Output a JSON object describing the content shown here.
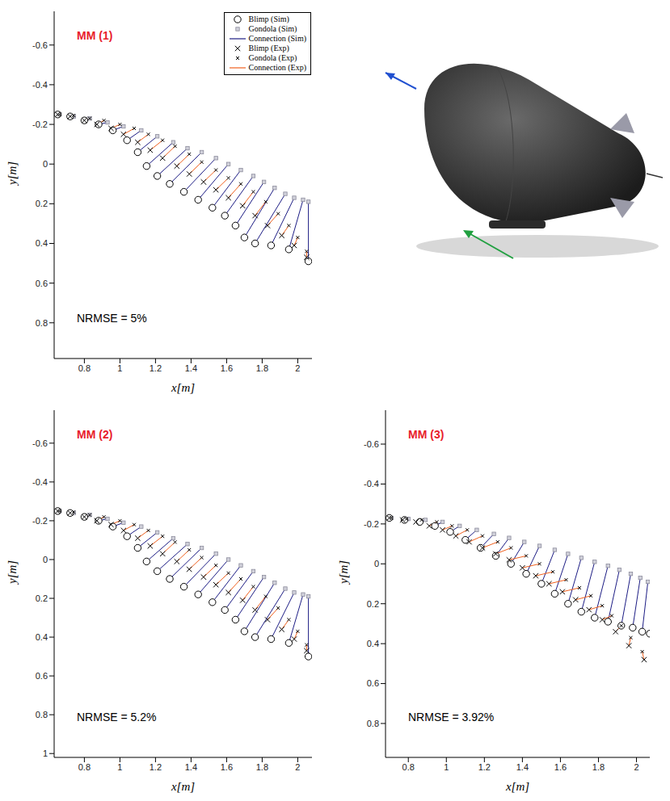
{
  "chart_data": [
    {
      "type": "scatter",
      "title": "MM (1)",
      "x_label": "x[m]",
      "y_label": "y[m]",
      "annotation": "NRMSE = 5%",
      "legend": "top-right",
      "xlim": [
        0.63,
        2.08
      ],
      "ylim": [
        0.98,
        -0.77
      ],
      "xticks": [
        0.8,
        1,
        1.2,
        1.4,
        1.6,
        1.8,
        2
      ],
      "yticks": [
        -0.6,
        -0.4,
        -0.2,
        0,
        0.2,
        0.4,
        0.6,
        0.8
      ],
      "series": [
        {
          "name": "Blimp (Sim)",
          "color": "#000000",
          "marker": "circle",
          "x": [
            0.65,
            0.72,
            0.8,
            0.88,
            0.96,
            1.04,
            1.1,
            1.15,
            1.21,
            1.28,
            1.36,
            1.44,
            1.52,
            1.59,
            1.65,
            1.7,
            1.76,
            1.85,
            1.95,
            2.06
          ],
          "y": [
            -0.25,
            -0.24,
            -0.22,
            -0.2,
            -0.17,
            -0.12,
            -0.06,
            0.01,
            0.06,
            0.1,
            0.14,
            0.18,
            0.22,
            0.26,
            0.31,
            0.37,
            0.4,
            0.41,
            0.43,
            0.49
          ]
        },
        {
          "name": "Gondola (Sim)",
          "color": "#8c8c9c",
          "marker": "square",
          "x": [
            0.66,
            0.74,
            0.83,
            0.93,
            1.02,
            1.12,
            1.21,
            1.3,
            1.38,
            1.46,
            1.54,
            1.61,
            1.68,
            1.75,
            1.81,
            1.87,
            1.93,
            1.98,
            2.03,
            2.06
          ],
          "y": [
            -0.25,
            -0.24,
            -0.23,
            -0.21,
            -0.19,
            -0.17,
            -0.14,
            -0.11,
            -0.08,
            -0.06,
            -0.03,
            0.0,
            0.03,
            0.06,
            0.09,
            0.12,
            0.15,
            0.17,
            0.18,
            0.19
          ]
        },
        {
          "name": "Connection (Sim)",
          "color": "#1c1c84",
          "type": "line"
        },
        {
          "name": "Blimp (Exp)",
          "color": "#000000",
          "marker": "x",
          "x": [
            0.65,
            0.72,
            0.8,
            0.87,
            0.95,
            1.02,
            1.1,
            1.17,
            1.24,
            1.32,
            1.39,
            1.47,
            1.54,
            1.61,
            1.69,
            1.76,
            1.83,
            1.91,
            1.98,
            2.05
          ],
          "y": [
            -0.25,
            -0.24,
            -0.22,
            -0.2,
            -0.18,
            -0.15,
            -0.11,
            -0.07,
            -0.03,
            0.01,
            0.05,
            0.09,
            0.13,
            0.17,
            0.21,
            0.26,
            0.31,
            0.36,
            0.41,
            0.47
          ]
        },
        {
          "name": "Gondola (Exp)",
          "color": "#000000",
          "marker": "small_x",
          "x": [
            0.66,
            0.74,
            0.83,
            0.91,
            1.0,
            1.08,
            1.16,
            1.24,
            1.31,
            1.39,
            1.46,
            1.54,
            1.61,
            1.68,
            1.75,
            1.82,
            1.89,
            1.95,
            2.0,
            2.05
          ],
          "y": [
            -0.25,
            -0.245,
            -0.23,
            -0.22,
            -0.2,
            -0.18,
            -0.15,
            -0.12,
            -0.09,
            -0.05,
            -0.01,
            0.03,
            0.07,
            0.1,
            0.14,
            0.19,
            0.25,
            0.31,
            0.37,
            0.44
          ]
        },
        {
          "name": "Connection (Exp)",
          "color": "#f0601e",
          "type": "line"
        }
      ]
    },
    {
      "type": "scatter",
      "title": "MM (2)",
      "x_label": "x[m]",
      "y_label": "y[m]",
      "annotation": "NRMSE = 5.2%",
      "xlim": [
        0.63,
        2.08
      ],
      "ylim": [
        1.02,
        -0.77
      ],
      "xticks": [
        0.8,
        1,
        1.2,
        1.4,
        1.6,
        1.8,
        2
      ],
      "yticks": [
        -0.6,
        -0.4,
        -0.2,
        0,
        0.2,
        0.4,
        0.6,
        0.8,
        1
      ],
      "series": [
        {
          "name": "Blimp (Sim)",
          "color": "#000000",
          "marker": "circle",
          "x": [
            0.65,
            0.72,
            0.8,
            0.88,
            0.96,
            1.04,
            1.1,
            1.15,
            1.21,
            1.28,
            1.36,
            1.44,
            1.52,
            1.59,
            1.65,
            1.7,
            1.76,
            1.85,
            1.95,
            2.06
          ],
          "y": [
            -0.25,
            -0.24,
            -0.22,
            -0.2,
            -0.17,
            -0.12,
            -0.06,
            0.01,
            0.06,
            0.1,
            0.14,
            0.18,
            0.22,
            0.26,
            0.31,
            0.37,
            0.4,
            0.41,
            0.43,
            0.5
          ]
        },
        {
          "name": "Gondola (Sim)",
          "color": "#8c8c9c",
          "marker": "square",
          "x": [
            0.66,
            0.74,
            0.83,
            0.93,
            1.02,
            1.12,
            1.21,
            1.3,
            1.38,
            1.46,
            1.54,
            1.61,
            1.68,
            1.75,
            1.81,
            1.87,
            1.93,
            1.98,
            2.03,
            2.06
          ],
          "y": [
            -0.25,
            -0.24,
            -0.23,
            -0.21,
            -0.19,
            -0.17,
            -0.14,
            -0.11,
            -0.08,
            -0.06,
            -0.03,
            0.0,
            0.03,
            0.06,
            0.09,
            0.12,
            0.15,
            0.17,
            0.18,
            0.19
          ]
        },
        {
          "name": "Connection (Sim)",
          "color": "#1c1c84",
          "type": "line"
        },
        {
          "name": "Blimp (Exp)",
          "color": "#000000",
          "marker": "x",
          "x": [
            0.65,
            0.72,
            0.8,
            0.87,
            0.95,
            1.02,
            1.1,
            1.17,
            1.24,
            1.32,
            1.39,
            1.47,
            1.54,
            1.61,
            1.69,
            1.76,
            1.83,
            1.91,
            1.98,
            2.05
          ],
          "y": [
            -0.25,
            -0.24,
            -0.22,
            -0.2,
            -0.18,
            -0.15,
            -0.11,
            -0.07,
            -0.03,
            0.01,
            0.05,
            0.09,
            0.13,
            0.17,
            0.21,
            0.26,
            0.31,
            0.36,
            0.41,
            0.47
          ]
        },
        {
          "name": "Gondola (Exp)",
          "color": "#000000",
          "marker": "small_x",
          "x": [
            0.66,
            0.74,
            0.83,
            0.91,
            1.0,
            1.08,
            1.16,
            1.24,
            1.31,
            1.39,
            1.46,
            1.54,
            1.61,
            1.68,
            1.75,
            1.82,
            1.89,
            1.95,
            2.0,
            2.05
          ],
          "y": [
            -0.25,
            -0.245,
            -0.23,
            -0.22,
            -0.2,
            -0.18,
            -0.15,
            -0.12,
            -0.09,
            -0.05,
            -0.01,
            0.03,
            0.07,
            0.1,
            0.14,
            0.19,
            0.25,
            0.31,
            0.37,
            0.44
          ]
        },
        {
          "name": "Connection (Exp)",
          "color": "#f0601e",
          "type": "line"
        }
      ]
    },
    {
      "type": "scatter",
      "title": "MM (3)",
      "x_label": "x[m]",
      "y_label": "y[m]",
      "annotation": "NRMSE = 3.92%",
      "xlim": [
        0.68,
        2.07
      ],
      "ylim": [
        0.97,
        -0.77
      ],
      "xticks": [
        0.8,
        1,
        1.2,
        1.4,
        1.6,
        1.8,
        2
      ],
      "yticks": [
        -0.6,
        -0.4,
        -0.2,
        0,
        0.2,
        0.4,
        0.6,
        0.8
      ],
      "series": [
        {
          "name": "Blimp (Sim)",
          "color": "#000000",
          "marker": "circle",
          "x": [
            0.7,
            0.78,
            0.86,
            0.94,
            1.02,
            1.1,
            1.18,
            1.26,
            1.34,
            1.42,
            1.5,
            1.57,
            1.64,
            1.71,
            1.78,
            1.85,
            1.92,
            1.98,
            2.03,
            2.07
          ],
          "y": [
            -0.23,
            -0.22,
            -0.21,
            -0.19,
            -0.16,
            -0.12,
            -0.08,
            -0.04,
            0.0,
            0.05,
            0.1,
            0.15,
            0.2,
            0.24,
            0.27,
            0.29,
            0.31,
            0.32,
            0.34,
            0.35
          ]
        },
        {
          "name": "Gondola (Sim)",
          "color": "#8c8c9c",
          "marker": "square",
          "x": [
            0.71,
            0.8,
            0.89,
            0.98,
            1.07,
            1.16,
            1.25,
            1.33,
            1.41,
            1.49,
            1.57,
            1.64,
            1.71,
            1.78,
            1.85,
            1.91,
            1.97,
            2.02,
            2.06,
            2.1
          ],
          "y": [
            -0.23,
            -0.225,
            -0.22,
            -0.21,
            -0.19,
            -0.17,
            -0.15,
            -0.13,
            -0.11,
            -0.09,
            -0.07,
            -0.05,
            -0.03,
            -0.01,
            0.01,
            0.03,
            0.05,
            0.07,
            0.09,
            0.1
          ]
        },
        {
          "name": "Connection (Sim)",
          "color": "#1c1c84",
          "type": "line"
        },
        {
          "name": "Blimp (Exp)",
          "color": "#000000",
          "marker": "x",
          "x": [
            0.7,
            0.77,
            0.84,
            0.91,
            0.98,
            1.05,
            1.12,
            1.19,
            1.26,
            1.33,
            1.4,
            1.47,
            1.54,
            1.61,
            1.68,
            1.75,
            1.82,
            1.89,
            1.96,
            2.04
          ],
          "y": [
            -0.23,
            -0.22,
            -0.21,
            -0.19,
            -0.17,
            -0.14,
            -0.11,
            -0.08,
            -0.05,
            -0.02,
            0.02,
            0.06,
            0.1,
            0.14,
            0.18,
            0.23,
            0.28,
            0.34,
            0.41,
            0.48
          ]
        },
        {
          "name": "Gondola (Exp)",
          "color": "#000000",
          "marker": "small_x",
          "x": [
            0.71,
            0.79,
            0.87,
            0.95,
            1.03,
            1.11,
            1.19,
            1.27,
            1.34,
            1.42,
            1.49,
            1.56,
            1.63,
            1.7,
            1.76,
            1.82,
            1.87,
            1.92,
            1.97,
            2.03
          ],
          "y": [
            -0.23,
            -0.225,
            -0.22,
            -0.21,
            -0.19,
            -0.17,
            -0.14,
            -0.11,
            -0.08,
            -0.04,
            0.0,
            0.04,
            0.08,
            0.12,
            0.16,
            0.21,
            0.26,
            0.31,
            0.37,
            0.44
          ]
        },
        {
          "name": "Connection (Exp)",
          "color": "#f0601e",
          "type": "line"
        }
      ]
    }
  ]
}
